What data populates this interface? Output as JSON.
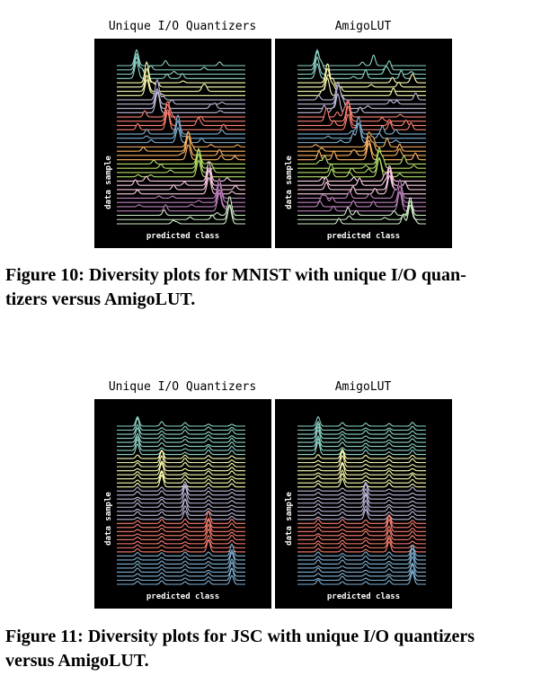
{
  "figures": [
    {
      "panels": [
        {
          "title": "Unique I/O Quantizers",
          "ylabel": "data sample",
          "xlabel": "predicted class",
          "peak_mode": "diagonal",
          "accent": false
        },
        {
          "title": "AmigoLUT",
          "ylabel": "data sample",
          "xlabel": "predicted class",
          "peak_mode": "diagonal",
          "accent": true
        }
      ],
      "caption": "Figure 10: Diversity plots for MNIST with unique I/O quantizers versus AmigoLUT.",
      "caption_line1": "Figure 10: Diversity plots for MNIST with unique I/O quan-",
      "caption_line2": "tizers versus AmigoLUT."
    },
    {
      "panels": [
        {
          "title": "Unique I/O Quantizers",
          "ylabel": "data sample",
          "xlabel": "predicted class",
          "peak_mode": "blocks",
          "accent": false
        },
        {
          "title": "AmigoLUT",
          "ylabel": "data sample",
          "xlabel": "predicted class",
          "peak_mode": "blocks",
          "accent": true
        }
      ],
      "caption": "Figure 11: Diversity plots for JSC with unique I/O quantizers versus AmigoLUT.",
      "caption_line1": "Figure 11: Diversity plots for JSC with unique I/O quantizers",
      "caption_line2": "versus AmigoLUT."
    }
  ],
  "chart_data": [
    {
      "type": "ridgeline",
      "title": "Unique I/O Quantizers",
      "xlabel": "predicted class",
      "ylabel": "data sample",
      "series_colors": [
        "#8dd3c7",
        "#ffffb3",
        "#bebada",
        "#fb8072",
        "#80b1d3",
        "#fdb462",
        "#b3de69",
        "#fccde5",
        "#bc80bd",
        "#ccebc5"
      ]
    },
    {
      "type": "ridgeline",
      "title": "AmigoLUT",
      "xlabel": "predicted class",
      "ylabel": "data sample",
      "series_colors": [
        "#8dd3c7",
        "#ffffb3",
        "#bebada",
        "#fb8072",
        "#80b1d3",
        "#fdb462",
        "#b3de69",
        "#fccde5",
        "#bc80bd",
        "#ccebc5"
      ]
    },
    {
      "type": "ridgeline",
      "title": "Unique I/O Quantizers",
      "xlabel": "predicted class",
      "ylabel": "data sample",
      "series_colors": [
        "#8dd3c7",
        "#ffffb3",
        "#bebada",
        "#fb8072",
        "#80b1d3"
      ]
    },
    {
      "type": "ridgeline",
      "title": "AmigoLUT",
      "xlabel": "predicted class",
      "ylabel": "data sample",
      "series_colors": [
        "#8dd3c7",
        "#ffffb3",
        "#bebada",
        "#fb8072",
        "#80b1d3"
      ]
    }
  ],
  "colors": {
    "mnist": [
      "#8dd3c7",
      "#ffffb3",
      "#bebada",
      "#fb8072",
      "#80b1d3",
      "#fdb462",
      "#b3de69",
      "#fccde5",
      "#bc80bd",
      "#ccebc5"
    ],
    "jsc": [
      "#8dd3c7",
      "#ffffb3",
      "#bebada",
      "#fb8072",
      "#80b1d3"
    ]
  }
}
